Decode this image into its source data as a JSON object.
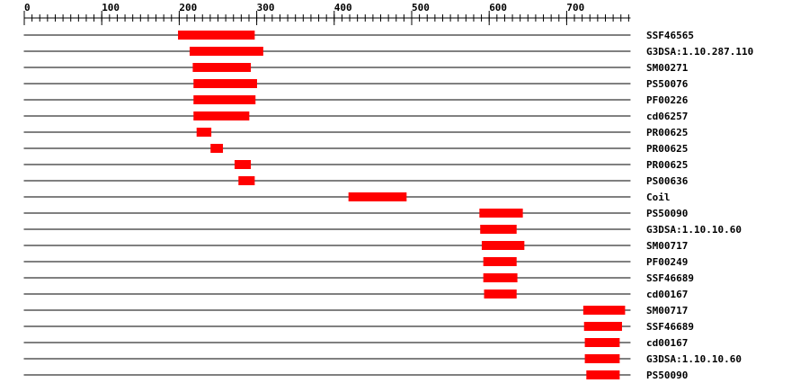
{
  "chart_data": {
    "type": "feature-track",
    "axis": {
      "min": 0,
      "max": 783,
      "major_ticks": [
        0,
        100,
        200,
        300,
        400,
        500,
        600,
        700
      ],
      "minor_tick_step": 10
    },
    "bar_color": "#ff0000",
    "tracks": [
      {
        "label": "SSF46565",
        "start": 199,
        "end": 298
      },
      {
        "label": "G3DSA:1.10.287.110",
        "start": 214,
        "end": 309
      },
      {
        "label": "SM00271",
        "start": 218,
        "end": 293
      },
      {
        "label": "PS50076",
        "start": 219,
        "end": 301
      },
      {
        "label": "PF00226",
        "start": 219,
        "end": 299
      },
      {
        "label": "cd06257",
        "start": 219,
        "end": 291
      },
      {
        "label": "PR00625",
        "start": 223,
        "end": 242
      },
      {
        "label": "PR00625",
        "start": 241,
        "end": 257
      },
      {
        "label": "PR00625",
        "start": 272,
        "end": 293
      },
      {
        "label": "PS00636",
        "start": 277,
        "end": 298
      },
      {
        "label": "Coil",
        "start": 419,
        "end": 494
      },
      {
        "label": "PS50090",
        "start": 588,
        "end": 644
      },
      {
        "label": "G3DSA:1.10.10.60",
        "start": 589,
        "end": 636
      },
      {
        "label": "SM00717",
        "start": 591,
        "end": 646
      },
      {
        "label": "PF00249",
        "start": 593,
        "end": 636
      },
      {
        "label": "SSF46689",
        "start": 593,
        "end": 637
      },
      {
        "label": "cd00167",
        "start": 594,
        "end": 636
      },
      {
        "label": "SM00717",
        "start": 722,
        "end": 776
      },
      {
        "label": "SSF46689",
        "start": 723,
        "end": 772
      },
      {
        "label": "cd00167",
        "start": 724,
        "end": 769
      },
      {
        "label": "G3DSA:1.10.10.60",
        "start": 724,
        "end": 769
      },
      {
        "label": "PS50090",
        "start": 726,
        "end": 769
      }
    ]
  }
}
